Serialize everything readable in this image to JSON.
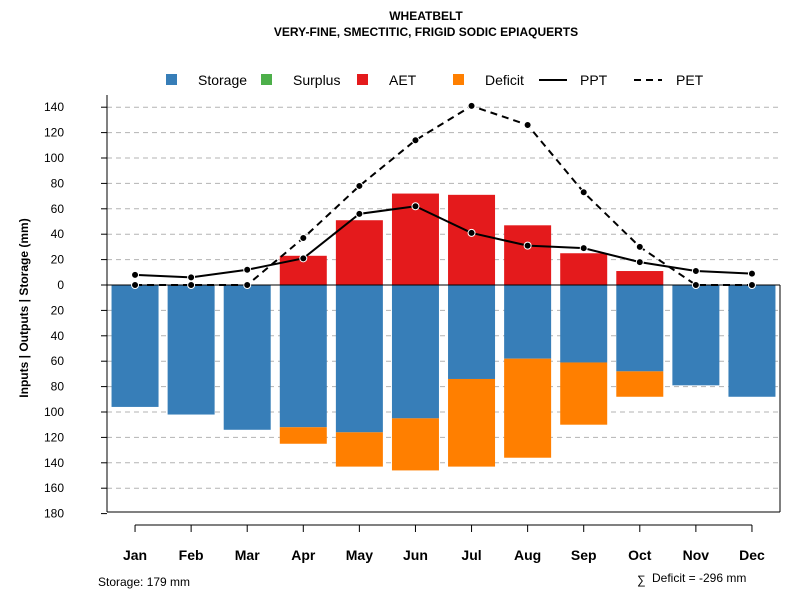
{
  "chart_data": {
    "type": "bar",
    "title": "WHEATBELT",
    "subtitle": "VERY-FINE, SMECTITIC, FRIGID SODIC EPIAQUERTS",
    "ylabel": "Inputs | Outputs | Storage    (mm)",
    "ylim": [
      -180,
      150
    ],
    "yticks": [
      140,
      120,
      100,
      80,
      60,
      40,
      20,
      0,
      -20,
      -40,
      -60,
      -80,
      -100,
      -120,
      -140,
      -160,
      -180
    ],
    "ytick_labels": [
      "140",
      "120",
      "100",
      "80",
      "60",
      "40",
      "20",
      "0",
      "20",
      "40",
      "60",
      "80",
      "100",
      "120",
      "140",
      "160",
      "180"
    ],
    "categories": [
      "Jan",
      "Feb",
      "Mar",
      "Apr",
      "May",
      "Jun",
      "Jul",
      "Aug",
      "Sep",
      "Oct",
      "Nov",
      "Dec"
    ],
    "series": [
      {
        "name": "Storage",
        "kind": "bar",
        "color": "#377EB8",
        "values": [
          96,
          102,
          114,
          112,
          116,
          105,
          74,
          58,
          61,
          68,
          79,
          88
        ]
      },
      {
        "name": "Surplus",
        "kind": "bar",
        "color": "#4DAF4A",
        "values": [
          0,
          0,
          0,
          0,
          0,
          0,
          0,
          0,
          0,
          0,
          0,
          0
        ]
      },
      {
        "name": "AET",
        "kind": "bar",
        "color": "#E41A1C",
        "values": [
          0,
          0,
          0,
          23,
          51,
          72,
          71,
          47,
          25,
          11,
          0,
          0
        ]
      },
      {
        "name": "Deficit",
        "kind": "bar",
        "color": "#FF7F00",
        "values": [
          0,
          0,
          0,
          13,
          27,
          41,
          69,
          78,
          49,
          20,
          0,
          0
        ]
      },
      {
        "name": "PPT",
        "kind": "line",
        "style": "solid",
        "color": "#000000",
        "values": [
          8,
          6,
          12,
          21,
          56,
          62,
          41,
          31,
          29,
          18,
          11,
          9
        ]
      },
      {
        "name": "PET",
        "kind": "line",
        "style": "dashed",
        "color": "#000000",
        "values": [
          0,
          0,
          0,
          37,
          78,
          114,
          141,
          126,
          73,
          30,
          0,
          0
        ]
      }
    ],
    "legend": [
      "Storage",
      "Surplus",
      "AET",
      "Deficit",
      "PPT",
      "PET"
    ],
    "legend_position": "top",
    "grid": true,
    "storage_note": "Storage: 179 mm",
    "deficit_note_symbol": "∑",
    "deficit_note": "Deficit = -296 mm"
  }
}
